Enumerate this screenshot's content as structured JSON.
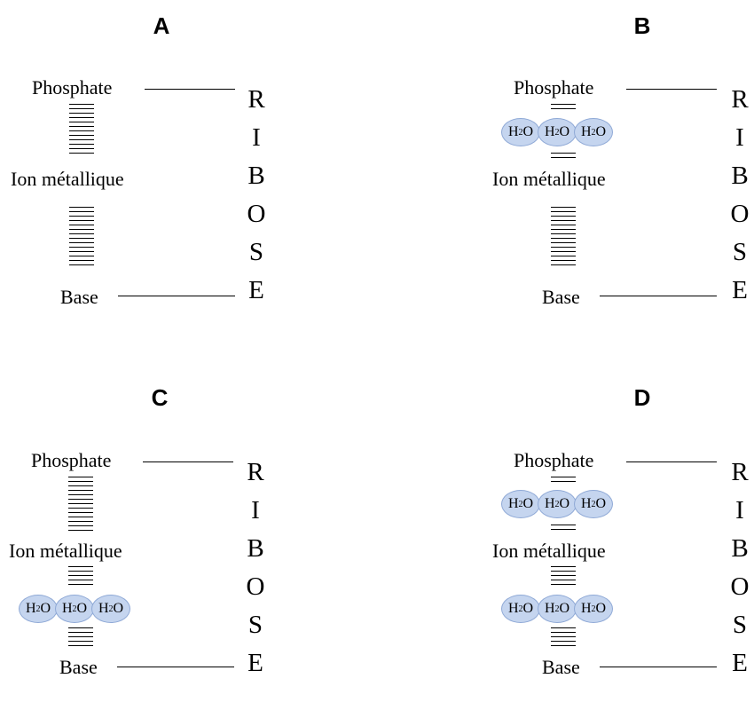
{
  "labels": {
    "phosphate": "Phosphate",
    "ion": "Ion métallique",
    "base": "Base",
    "water_h": "H",
    "water_sub": "2",
    "water_o": "O"
  },
  "ribose_letters": [
    "R",
    "I",
    "B",
    "O",
    "S",
    "E"
  ],
  "panels": [
    {
      "title": "A",
      "waters_upper": 0,
      "waters_lower": 0
    },
    {
      "title": "B",
      "waters_upper": 3,
      "waters_lower": 0
    },
    {
      "title": "C",
      "waters_upper": 0,
      "waters_lower": 3
    },
    {
      "title": "D",
      "waters_upper": 3,
      "waters_lower": 3
    }
  ],
  "colors": {
    "water_fill": "#c5d5ef",
    "water_border": "#8fa9d6"
  }
}
